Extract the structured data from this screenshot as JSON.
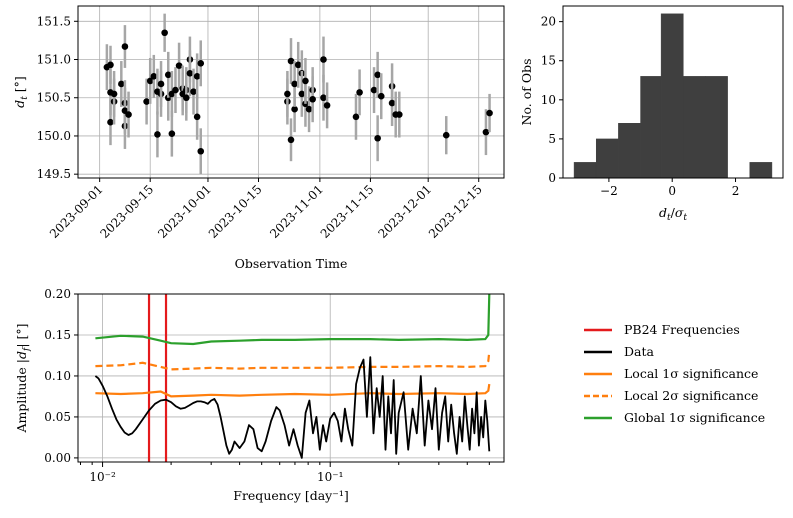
{
  "chart_data": [
    {
      "type": "scatter",
      "xlabel": "Observation Time",
      "ylabel": "d_t [°]",
      "ylabel_parts": {
        "base": "d",
        "sub": "t",
        "unit": " [°]"
      },
      "x_tick_labels": [
        "2023-09-01",
        "2023-09-15",
        "2023-10-01",
        "2023-10-15",
        "2023-11-01",
        "2023-11-15",
        "2023-12-01",
        "2023-12-15"
      ],
      "x_tick_dates": [
        "2023-09-01",
        "2023-09-15",
        "2023-10-01",
        "2023-10-15",
        "2023-11-01",
        "2023-11-15",
        "2023-12-01",
        "2023-12-15"
      ],
      "xlim": [
        "2023-08-26",
        "2023-12-22"
      ],
      "y_ticks": [
        "149.5",
        "150.0",
        "150.5",
        "151.0",
        "151.5"
      ],
      "ylim": [
        149.45,
        151.7
      ],
      "grid": true,
      "error_bars": true,
      "points": [
        {
          "x": "2023-09-03",
          "y": 150.9,
          "err": 0.3
        },
        {
          "x": "2023-09-04",
          "y": 150.57,
          "err": 0.3
        },
        {
          "x": "2023-09-04",
          "y": 150.93,
          "err": 0.25
        },
        {
          "x": "2023-09-04",
          "y": 150.18,
          "err": 0.3
        },
        {
          "x": "2023-09-05",
          "y": 150.45,
          "err": 0.3
        },
        {
          "x": "2023-09-05",
          "y": 150.55,
          "err": 0.3
        },
        {
          "x": "2023-09-07",
          "y": 150.68,
          "err": 0.3
        },
        {
          "x": "2023-09-08",
          "y": 150.43,
          "err": 0.3
        },
        {
          "x": "2023-09-08",
          "y": 150.13,
          "err": 0.3
        },
        {
          "x": "2023-09-08",
          "y": 151.17,
          "err": 0.28
        },
        {
          "x": "2023-09-08",
          "y": 150.33,
          "err": 0.3
        },
        {
          "x": "2023-09-09",
          "y": 150.28,
          "err": 0.3
        },
        {
          "x": "2023-09-14",
          "y": 150.45,
          "err": 0.3
        },
        {
          "x": "2023-09-15",
          "y": 150.72,
          "err": 0.3
        },
        {
          "x": "2023-09-16",
          "y": 150.78,
          "err": 0.28
        },
        {
          "x": "2023-09-17",
          "y": 150.02,
          "err": 0.3
        },
        {
          "x": "2023-09-17",
          "y": 150.58,
          "err": 0.3
        },
        {
          "x": "2023-09-18",
          "y": 150.55,
          "err": 0.3
        },
        {
          "x": "2023-09-18",
          "y": 150.68,
          "err": 0.3
        },
        {
          "x": "2023-09-19",
          "y": 151.35,
          "err": 0.25
        },
        {
          "x": "2023-09-20",
          "y": 150.5,
          "err": 0.3
        },
        {
          "x": "2023-09-20",
          "y": 150.8,
          "err": 0.3
        },
        {
          "x": "2023-09-21",
          "y": 150.55,
          "err": 0.3
        },
        {
          "x": "2023-09-21",
          "y": 150.03,
          "err": 0.3
        },
        {
          "x": "2023-09-22",
          "y": 150.6,
          "err": 0.3
        },
        {
          "x": "2023-09-23",
          "y": 150.92,
          "err": 0.3
        },
        {
          "x": "2023-09-24",
          "y": 150.62,
          "err": 0.3
        },
        {
          "x": "2023-09-24",
          "y": 150.55,
          "err": 0.28
        },
        {
          "x": "2023-09-25",
          "y": 150.6,
          "err": 0.3
        },
        {
          "x": "2023-09-25",
          "y": 150.5,
          "err": 0.3
        },
        {
          "x": "2023-09-26",
          "y": 151.0,
          "err": 0.3
        },
        {
          "x": "2023-09-26",
          "y": 150.82,
          "err": 0.3
        },
        {
          "x": "2023-09-27",
          "y": 150.58,
          "err": 0.3
        },
        {
          "x": "2023-09-28",
          "y": 150.25,
          "err": 0.3
        },
        {
          "x": "2023-09-28",
          "y": 150.78,
          "err": 0.3
        },
        {
          "x": "2023-09-29",
          "y": 150.95,
          "err": 0.3
        },
        {
          "x": "2023-09-29",
          "y": 149.8,
          "err": 0.3
        },
        {
          "x": "2023-10-23",
          "y": 150.45,
          "err": 0.3
        },
        {
          "x": "2023-10-23",
          "y": 150.55,
          "err": 0.3
        },
        {
          "x": "2023-10-24",
          "y": 149.95,
          "err": 0.28
        },
        {
          "x": "2023-10-24",
          "y": 150.98,
          "err": 0.3
        },
        {
          "x": "2023-10-25",
          "y": 150.35,
          "err": 0.3
        },
        {
          "x": "2023-10-25",
          "y": 150.68,
          "err": 0.3
        },
        {
          "x": "2023-10-26",
          "y": 150.93,
          "err": 0.3
        },
        {
          "x": "2023-10-27",
          "y": 150.82,
          "err": 0.3
        },
        {
          "x": "2023-10-27",
          "y": 150.55,
          "err": 0.3
        },
        {
          "x": "2023-10-28",
          "y": 150.42,
          "err": 0.3
        },
        {
          "x": "2023-10-28",
          "y": 150.72,
          "err": 0.3
        },
        {
          "x": "2023-10-29",
          "y": 150.35,
          "err": 0.3
        },
        {
          "x": "2023-10-30",
          "y": 150.6,
          "err": 0.3
        },
        {
          "x": "2023-10-30",
          "y": 150.48,
          "err": 0.3
        },
        {
          "x": "2023-11-02",
          "y": 150.5,
          "err": 0.3
        },
        {
          "x": "2023-11-02",
          "y": 151.0,
          "err": 0.3
        },
        {
          "x": "2023-11-03",
          "y": 150.4,
          "err": 0.3
        },
        {
          "x": "2023-11-11",
          "y": 150.25,
          "err": 0.3
        },
        {
          "x": "2023-11-12",
          "y": 150.57,
          "err": 0.3
        },
        {
          "x": "2023-11-16",
          "y": 150.6,
          "err": 0.3
        },
        {
          "x": "2023-11-17",
          "y": 149.97,
          "err": 0.3
        },
        {
          "x": "2023-11-17",
          "y": 150.8,
          "err": 0.3
        },
        {
          "x": "2023-11-18",
          "y": 150.52,
          "err": 0.3
        },
        {
          "x": "2023-11-21",
          "y": 150.65,
          "err": 0.3
        },
        {
          "x": "2023-11-21",
          "y": 150.43,
          "err": 0.3
        },
        {
          "x": "2023-11-22",
          "y": 150.28,
          "err": 0.3
        },
        {
          "x": "2023-11-23",
          "y": 150.28,
          "err": 0.3
        },
        {
          "x": "2023-12-06",
          "y": 150.01,
          "err": 0.25
        },
        {
          "x": "2023-12-17",
          "y": 150.05,
          "err": 0.3
        },
        {
          "x": "2023-12-18",
          "y": 150.3,
          "err": 0.25
        }
      ]
    },
    {
      "type": "bar",
      "subtype": "histogram",
      "xlabel": "d_t/σ_t",
      "ylabel": "No. of Obs",
      "bin_edges": [
        -3.1,
        -2.4,
        -1.7,
        -1.0,
        -0.35,
        0.35,
        1.05,
        1.75,
        2.45,
        3.15
      ],
      "values": [
        2,
        5,
        7,
        13,
        21,
        13,
        13,
        0,
        2
      ],
      "x_ticks": [
        "−2",
        "0",
        "2"
      ],
      "x_tick_values": [
        -2,
        0,
        2
      ],
      "y_ticks": [
        "0",
        "5",
        "10",
        "15",
        "20"
      ],
      "xlim": [
        -3.45,
        3.5
      ],
      "ylim": [
        0,
        22
      ],
      "bar_color": "#3f3f3f"
    },
    {
      "type": "line",
      "xscale": "log",
      "xlabel": "Frequency [day⁻¹]",
      "ylabel": "Amplitude |d_f| [°]",
      "xlim": [
        0.0078,
        0.58
      ],
      "ylim": [
        -0.005,
        0.2
      ],
      "y_ticks": [
        "0.00",
        "0.05",
        "0.10",
        "0.15",
        "0.20"
      ],
      "x_ticks": [
        "10⁻²",
        "10⁻¹"
      ],
      "grid": true,
      "pb24_frequencies": [
        0.016,
        0.019
      ],
      "series": [
        {
          "name": "PB24 Frequencies",
          "color": "#e41a1c"
        },
        {
          "name": "Data",
          "color": "#000000",
          "x": [
            0.0093,
            0.0096,
            0.01,
            0.0105,
            0.011,
            0.0115,
            0.012,
            0.0125,
            0.013,
            0.0135,
            0.014,
            0.015,
            0.016,
            0.017,
            0.018,
            0.019,
            0.02,
            0.021,
            0.022,
            0.023,
            0.024,
            0.025,
            0.026,
            0.027,
            0.028,
            0.029,
            0.03,
            0.031,
            0.032,
            0.033,
            0.034,
            0.035,
            0.036,
            0.037,
            0.038,
            0.04,
            0.042,
            0.044,
            0.046,
            0.048,
            0.05,
            0.052,
            0.055,
            0.058,
            0.06,
            0.063,
            0.066,
            0.069,
            0.072,
            0.075,
            0.078,
            0.081,
            0.084,
            0.087,
            0.09,
            0.093,
            0.096,
            0.1,
            0.104,
            0.108,
            0.112,
            0.116,
            0.12,
            0.125,
            0.13,
            0.135,
            0.14,
            0.145,
            0.15,
            0.155,
            0.16,
            0.165,
            0.17,
            0.175,
            0.18,
            0.185,
            0.19,
            0.195,
            0.2,
            0.21,
            0.22,
            0.23,
            0.24,
            0.25,
            0.26,
            0.27,
            0.28,
            0.29,
            0.3,
            0.31,
            0.32,
            0.33,
            0.34,
            0.35,
            0.36,
            0.37,
            0.38,
            0.39,
            0.4,
            0.41,
            0.42,
            0.43,
            0.44,
            0.45,
            0.46,
            0.47,
            0.48,
            0.49,
            0.5
          ],
          "y": [
            0.1,
            0.097,
            0.088,
            0.075,
            0.06,
            0.047,
            0.038,
            0.031,
            0.028,
            0.03,
            0.035,
            0.047,
            0.058,
            0.066,
            0.07,
            0.071,
            0.068,
            0.063,
            0.06,
            0.061,
            0.064,
            0.067,
            0.069,
            0.069,
            0.068,
            0.066,
            0.07,
            0.072,
            0.065,
            0.05,
            0.032,
            0.015,
            0.005,
            0.01,
            0.02,
            0.012,
            0.02,
            0.04,
            0.035,
            0.012,
            0.008,
            0.02,
            0.045,
            0.062,
            0.058,
            0.04,
            0.015,
            0.035,
            0.015,
            0.0,
            0.055,
            0.07,
            0.03,
            0.05,
            0.01,
            0.04,
            0.02,
            0.048,
            0.055,
            0.045,
            0.02,
            0.06,
            0.035,
            0.015,
            0.09,
            0.11,
            0.12,
            0.05,
            0.123,
            0.03,
            0.085,
            0.05,
            0.1,
            0.01,
            0.075,
            0.03,
            0.095,
            0.005,
            0.055,
            0.08,
            0.01,
            0.06,
            0.03,
            0.1,
            0.015,
            0.07,
            0.035,
            0.085,
            0.01,
            0.055,
            0.075,
            0.02,
            0.065,
            0.03,
            0.005,
            0.05,
            0.02,
            0.075,
            0.04,
            0.01,
            0.06,
            0.03,
            0.08,
            0.015,
            0.05,
            0.025,
            0.07,
            0.045,
            0.008
          ]
        },
        {
          "name": "Local 1σ significance",
          "color": "#ff7f0e",
          "style": "solid",
          "x": [
            0.0093,
            0.012,
            0.015,
            0.018,
            0.02,
            0.025,
            0.03,
            0.04,
            0.05,
            0.07,
            0.1,
            0.15,
            0.2,
            0.3,
            0.4,
            0.48,
            0.495,
            0.5
          ],
          "y": [
            0.079,
            0.078,
            0.079,
            0.081,
            0.075,
            0.076,
            0.077,
            0.076,
            0.077,
            0.078,
            0.077,
            0.079,
            0.078,
            0.079,
            0.078,
            0.079,
            0.082,
            0.09
          ]
        },
        {
          "name": "Local 2σ significance",
          "color": "#ff7f0e",
          "style": "dashed",
          "x": [
            0.0093,
            0.012,
            0.015,
            0.018,
            0.02,
            0.025,
            0.03,
            0.04,
            0.05,
            0.07,
            0.1,
            0.15,
            0.2,
            0.3,
            0.4,
            0.48,
            0.495,
            0.5
          ],
          "y": [
            0.112,
            0.113,
            0.116,
            0.111,
            0.108,
            0.109,
            0.11,
            0.109,
            0.11,
            0.11,
            0.11,
            0.111,
            0.111,
            0.112,
            0.111,
            0.112,
            0.118,
            0.13
          ]
        },
        {
          "name": "Global 1σ significance",
          "color": "#2ca02c",
          "style": "solid",
          "x": [
            0.0093,
            0.012,
            0.015,
            0.018,
            0.02,
            0.025,
            0.03,
            0.04,
            0.05,
            0.07,
            0.1,
            0.15,
            0.2,
            0.3,
            0.4,
            0.48,
            0.495,
            0.5
          ],
          "y": [
            0.146,
            0.149,
            0.148,
            0.143,
            0.14,
            0.139,
            0.142,
            0.143,
            0.144,
            0.144,
            0.145,
            0.145,
            0.144,
            0.145,
            0.144,
            0.145,
            0.15,
            0.2
          ]
        }
      ]
    }
  ]
}
